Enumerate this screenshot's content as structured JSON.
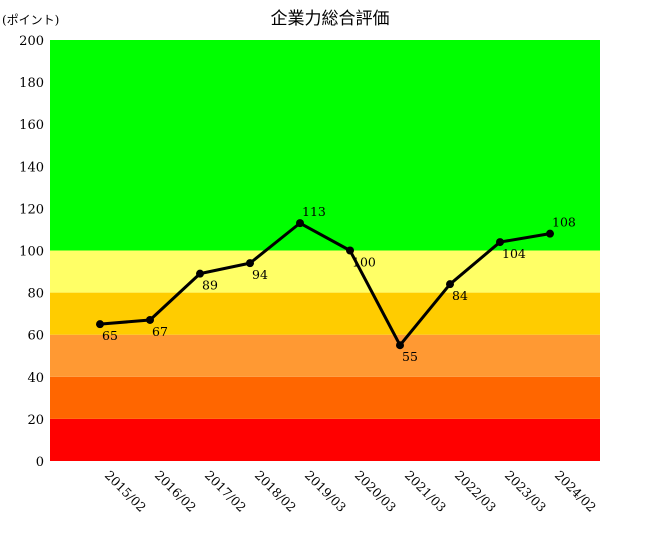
{
  "chart_data": {
    "type": "line",
    "title": "企業力総合評価",
    "ylabel": "(ポイント)",
    "xlabel": "",
    "ylim": [
      0,
      200
    ],
    "yticks": [
      0,
      20,
      40,
      60,
      80,
      100,
      120,
      140,
      160,
      180,
      200
    ],
    "grid": false,
    "legend": "none",
    "categories": [
      "2015/02",
      "2016/02",
      "2017/02",
      "2018/02",
      "2019/03",
      "2020/03",
      "2021/03",
      "2022/03",
      "2023/03",
      "2024/02"
    ],
    "series": [
      {
        "values": [
          65,
          67,
          89,
          94,
          113,
          100,
          55,
          84,
          104,
          108
        ],
        "color": "#000000"
      }
    ],
    "bands": [
      {
        "from": 0,
        "to": 20,
        "color": "#ff0000"
      },
      {
        "from": 20,
        "to": 40,
        "color": "#ff6600"
      },
      {
        "from": 40,
        "to": 60,
        "color": "#ff9933"
      },
      {
        "from": 60,
        "to": 80,
        "color": "#ffcc00"
      },
      {
        "from": 80,
        "to": 100,
        "color": "#ffff66"
      },
      {
        "from": 100,
        "to": 200,
        "color": "#00ff00"
      }
    ]
  }
}
